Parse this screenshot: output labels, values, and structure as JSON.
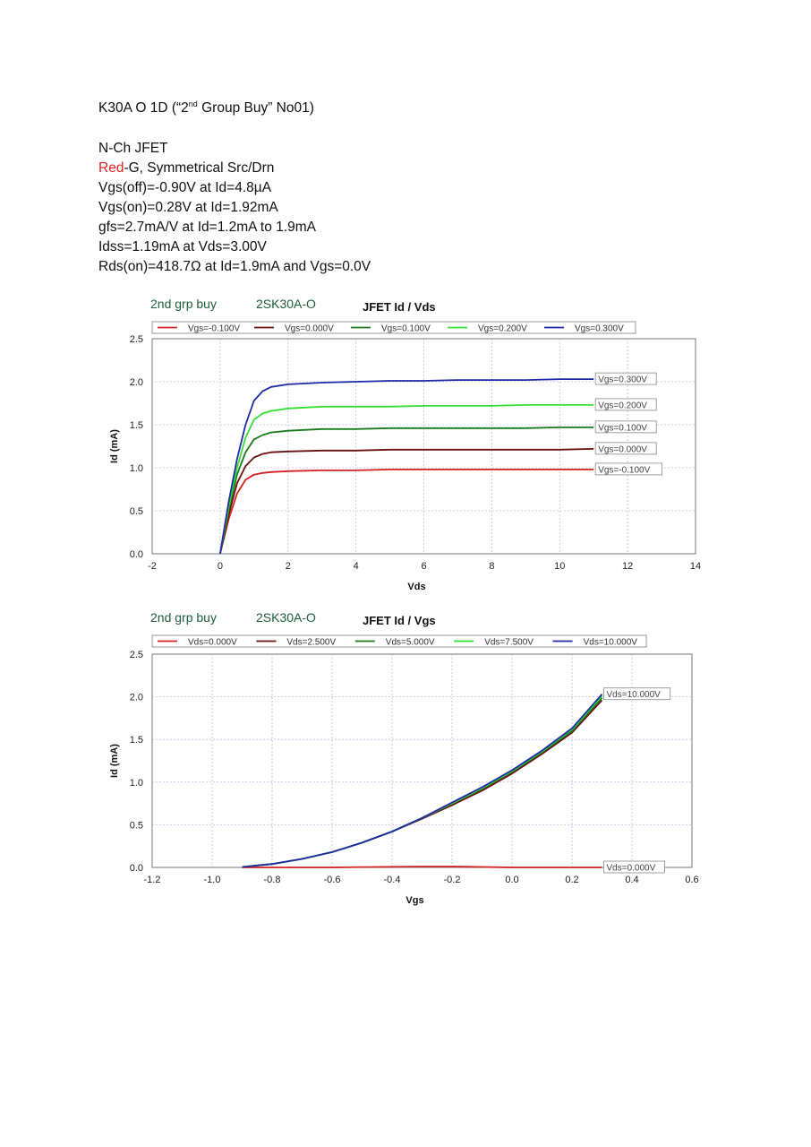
{
  "document": {
    "title_pre": "K30A  O  1D   (“2",
    "title_sup": "nd",
    "title_post": " Group Buy” No01)",
    "lines": {
      "type": "N-Ch JFET",
      "gate_color_word": "Red",
      "gate_rest": "-G, Symmetrical Src/Drn",
      "vgs_off": "Vgs(off)=-0.90V at Id=4.8µA",
      "vgs_on": "Vgs(on)=0.28V at Id=1.92mA",
      "gfs": "gfs=2.7mA/V at Id=1.2mA to 1.9mA",
      "idss": "Idss=1.19mA at Vds=3.00V",
      "rds_on": "Rds(on)=418.7Ω at Id=1.9mA and Vgs=0.0V"
    }
  },
  "colors": {
    "red": "#d42020",
    "dark_red": "#6b1010",
    "green": "#1a7a1a",
    "light_green": "#33e033",
    "blue": "#1f2aa8",
    "note_green": "#1d5c3c",
    "grid": "#c9b6e0"
  },
  "chart_data": [
    {
      "type": "line",
      "header_left": "2nd grp buy",
      "header_mid": "2SK30A-O",
      "title": "JFET Id / Vds",
      "xlabel": "Vds",
      "ylabel": "Id (mA)",
      "xlim": [
        -2,
        14
      ],
      "ylim": [
        0,
        2.5
      ],
      "xticks": [
        "-2",
        "0",
        "2",
        "4",
        "6",
        "8",
        "10",
        "12",
        "14"
      ],
      "yticks": [
        "0.0",
        "0.5",
        "1.0",
        "1.5",
        "2.0",
        "2.5"
      ],
      "grid": true,
      "legend_placement": "top",
      "series": [
        {
          "name": "Vgs=-0.100V",
          "end_label": "Vgs=-0.100V",
          "color": "#d42020",
          "x": [
            0,
            0.25,
            0.5,
            0.75,
            1.0,
            1.25,
            1.5,
            2.0,
            3.0,
            4.0,
            5.0,
            6.0,
            7.0,
            8.0,
            9.0,
            10.0,
            11.0
          ],
          "y": [
            0,
            0.4,
            0.7,
            0.86,
            0.92,
            0.94,
            0.95,
            0.96,
            0.97,
            0.97,
            0.98,
            0.98,
            0.98,
            0.98,
            0.98,
            0.98,
            0.98
          ]
        },
        {
          "name": "Vgs=0.000V",
          "end_label": "Vgs=0.000V",
          "color": "#6b1010",
          "x": [
            0,
            0.25,
            0.5,
            0.75,
            1.0,
            1.25,
            1.5,
            2.0,
            3.0,
            4.0,
            5.0,
            6.0,
            7.0,
            8.0,
            9.0,
            10.0,
            11.0
          ],
          "y": [
            0,
            0.45,
            0.82,
            1.02,
            1.12,
            1.16,
            1.18,
            1.19,
            1.2,
            1.2,
            1.21,
            1.21,
            1.21,
            1.21,
            1.21,
            1.21,
            1.22
          ]
        },
        {
          "name": "Vgs=0.100V",
          "end_label": "Vgs=0.100V",
          "color": "#1a7a1a",
          "x": [
            0,
            0.25,
            0.5,
            0.75,
            1.0,
            1.25,
            1.5,
            2.0,
            3.0,
            4.0,
            5.0,
            6.0,
            7.0,
            8.0,
            9.0,
            10.0,
            11.0
          ],
          "y": [
            0,
            0.5,
            0.92,
            1.18,
            1.33,
            1.38,
            1.41,
            1.43,
            1.45,
            1.45,
            1.46,
            1.46,
            1.46,
            1.46,
            1.46,
            1.47,
            1.47
          ]
        },
        {
          "name": "Vgs=0.200V",
          "end_label": "Vgs=0.200V",
          "color": "#33e033",
          "x": [
            0,
            0.25,
            0.5,
            0.75,
            1.0,
            1.25,
            1.5,
            2.0,
            3.0,
            4.0,
            5.0,
            6.0,
            7.0,
            8.0,
            9.0,
            10.0,
            11.0
          ],
          "y": [
            0,
            0.55,
            1.0,
            1.35,
            1.56,
            1.63,
            1.66,
            1.69,
            1.71,
            1.71,
            1.71,
            1.72,
            1.72,
            1.72,
            1.73,
            1.73,
            1.73
          ]
        },
        {
          "name": "Vgs=0.300V",
          "end_label": "Vgs=0.300V",
          "color": "#1f2aa8",
          "x": [
            0,
            0.25,
            0.5,
            0.75,
            1.0,
            1.25,
            1.5,
            2.0,
            3.0,
            4.0,
            5.0,
            6.0,
            7.0,
            8.0,
            9.0,
            10.0,
            11.0
          ],
          "y": [
            0,
            0.6,
            1.1,
            1.5,
            1.78,
            1.89,
            1.94,
            1.97,
            1.99,
            2.0,
            2.01,
            2.01,
            2.02,
            2.02,
            2.02,
            2.03,
            2.03
          ]
        }
      ]
    },
    {
      "type": "line",
      "header_left": "2nd grp buy",
      "header_mid": "2SK30A-O",
      "title": "JFET Id / Vgs",
      "xlabel": "Vgs",
      "ylabel": "Id (mA)",
      "xlim": [
        -1.2,
        0.6
      ],
      "ylim": [
        0,
        2.5
      ],
      "xticks": [
        "-1.2",
        "-1.0",
        "-0.8",
        "-0.6",
        "-0.4",
        "-0.2",
        "0.0",
        "0.2",
        "0.4",
        "0.6"
      ],
      "yticks": [
        "0.0",
        "0.5",
        "1.0",
        "1.5",
        "2.0",
        "2.5"
      ],
      "grid": true,
      "legend_placement": "top",
      "series": [
        {
          "name": "Vds=0.000V",
          "end_label": "Vds=0.000V",
          "color": "#d42020",
          "x": [
            -0.9,
            -0.6,
            -0.3,
            -0.2,
            0.0,
            0.3
          ],
          "y": [
            0.0,
            0.0,
            0.01,
            0.01,
            0.0,
            0.0
          ]
        },
        {
          "name": "Vds=2.500V",
          "end_label": "",
          "color": "#6b1010",
          "x": [
            -0.9,
            -0.8,
            -0.7,
            -0.6,
            -0.5,
            -0.4,
            -0.3,
            -0.2,
            -0.1,
            0.0,
            0.1,
            0.2,
            0.3
          ],
          "y": [
            0.005,
            0.04,
            0.1,
            0.18,
            0.29,
            0.42,
            0.57,
            0.73,
            0.9,
            1.1,
            1.33,
            1.58,
            1.96
          ]
        },
        {
          "name": "Vds=5.000V",
          "end_label": "",
          "color": "#1a7a1a",
          "x": [
            -0.9,
            -0.8,
            -0.7,
            -0.6,
            -0.5,
            -0.4,
            -0.3,
            -0.2,
            -0.1,
            0.0,
            0.1,
            0.2,
            0.3
          ],
          "y": [
            0.005,
            0.04,
            0.1,
            0.18,
            0.29,
            0.42,
            0.58,
            0.75,
            0.92,
            1.12,
            1.35,
            1.6,
            1.99
          ]
        },
        {
          "name": "Vds=7.500V",
          "end_label": "",
          "color": "#33e033",
          "x": [
            -0.9,
            -0.8,
            -0.7,
            -0.6,
            -0.5,
            -0.4,
            -0.3,
            -0.2,
            -0.1,
            0.0,
            0.1,
            0.2,
            0.3
          ],
          "y": [
            0.005,
            0.04,
            0.1,
            0.18,
            0.29,
            0.42,
            0.58,
            0.75,
            0.93,
            1.13,
            1.36,
            1.62,
            2.01
          ]
        },
        {
          "name": "Vds=10.000V",
          "end_label": "Vds=10.000V",
          "color": "#1f2aa8",
          "x": [
            -0.9,
            -0.8,
            -0.7,
            -0.6,
            -0.5,
            -0.4,
            -0.3,
            -0.2,
            -0.1,
            0.0,
            0.1,
            0.2,
            0.3
          ],
          "y": [
            0.005,
            0.04,
            0.1,
            0.18,
            0.29,
            0.42,
            0.58,
            0.76,
            0.94,
            1.14,
            1.37,
            1.63,
            2.03
          ]
        }
      ]
    }
  ]
}
